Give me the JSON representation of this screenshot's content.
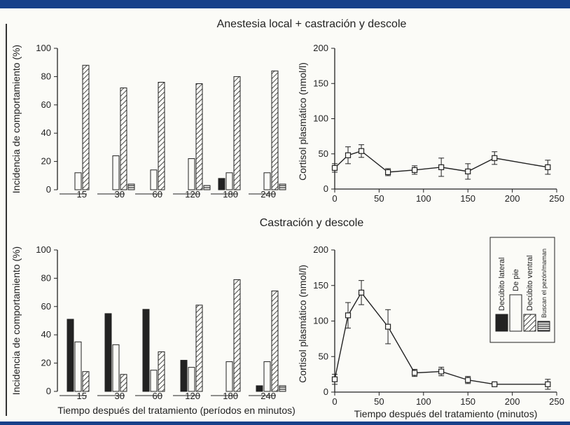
{
  "panel_titles": {
    "top": "Anestesia local + castración y descole",
    "bottom": "Castración y descole"
  },
  "legend": {
    "items": [
      {
        "label": "Decúbito lateral",
        "pattern": "solid"
      },
      {
        "label": "De pie",
        "pattern": "open"
      },
      {
        "label": "Decúbito ventral",
        "pattern": "diagonal"
      },
      {
        "label": "Buscan el pezón/maman",
        "pattern": "horizontal"
      }
    ]
  },
  "colors": {
    "ink": "#222222",
    "paper": "#fbfbf7",
    "border": "#17408a"
  },
  "chart_data": [
    {
      "id": "top-behavior",
      "type": "bar",
      "ylabel": "Incidencia de comportamiento (%)",
      "xlabel": "",
      "ylim": [
        0,
        100
      ],
      "yticks": [
        0,
        20,
        40,
        60,
        80,
        100
      ],
      "categories": [
        "15",
        "30",
        "60",
        "120",
        "180",
        "240"
      ],
      "series": [
        {
          "name": "Decúbito lateral",
          "pattern": "solid",
          "values": [
            0,
            0,
            0,
            0,
            8,
            0
          ]
        },
        {
          "name": "De pie",
          "pattern": "open",
          "values": [
            12,
            24,
            14,
            22,
            12,
            12
          ]
        },
        {
          "name": "Decúbito ventral",
          "pattern": "diagonal",
          "values": [
            88,
            72,
            76,
            75,
            80,
            84
          ]
        },
        {
          "name": "Buscan el pezón/maman",
          "pattern": "horizontal",
          "values": [
            0,
            4,
            0,
            3,
            0,
            4
          ]
        }
      ]
    },
    {
      "id": "top-cortisol",
      "type": "line",
      "ylabel": "Cortisol plasmático (nmol/l)",
      "xlabel": "",
      "xlim": [
        0,
        250
      ],
      "ylim": [
        0,
        200
      ],
      "xticks": [
        0,
        50,
        100,
        150,
        200,
        250
      ],
      "yticks": [
        0,
        50,
        100,
        150,
        200
      ],
      "xticklabels": [
        "0",
        "50",
        "100",
        "150",
        "200",
        "250"
      ],
      "yticklabels": [
        "0",
        "50",
        "100",
        "150",
        "200"
      ],
      "x": [
        0,
        15,
        30,
        60,
        90,
        120,
        150,
        180,
        240
      ],
      "y": [
        30,
        48,
        54,
        24,
        27,
        31,
        25,
        44,
        31
      ],
      "err": [
        6,
        12,
        9,
        5,
        6,
        13,
        11,
        9,
        10
      ]
    },
    {
      "id": "bottom-behavior",
      "type": "bar",
      "ylabel": "Incidencia de comportamiento (%)",
      "xlabel": "Tiempo después del tratamiento (períodos en minutos)",
      "ylim": [
        0,
        100
      ],
      "yticks": [
        0,
        20,
        40,
        60,
        80,
        100
      ],
      "categories": [
        "15",
        "30",
        "60",
        "120",
        "180",
        "240"
      ],
      "series": [
        {
          "name": "Decúbito lateral",
          "pattern": "solid",
          "values": [
            51,
            55,
            58,
            22,
            0,
            4
          ]
        },
        {
          "name": "De pie",
          "pattern": "open",
          "values": [
            35,
            33,
            15,
            17,
            21,
            21
          ]
        },
        {
          "name": "Decúbito ventral",
          "pattern": "diagonal",
          "values": [
            14,
            12,
            28,
            61,
            79,
            71
          ]
        },
        {
          "name": "Buscan el pezón/maman",
          "pattern": "horizontal",
          "values": [
            0,
            0,
            0,
            0,
            0,
            4
          ]
        }
      ]
    },
    {
      "id": "bottom-cortisol",
      "type": "line",
      "ylabel": "Cortisol plasmático (nmol/l)",
      "xlabel": "Tiempo después del tratamiento (minutos)",
      "xlim": [
        0,
        250
      ],
      "ylim": [
        0,
        200
      ],
      "xticks": [
        0,
        50,
        100,
        150,
        200,
        250
      ],
      "yticks": [
        0,
        50,
        100,
        150,
        200
      ],
      "xticklabels": [
        "0",
        "50",
        "100",
        "150",
        "200",
        "250"
      ],
      "yticklabels": [
        "0",
        "50",
        "100",
        "150",
        "200"
      ],
      "x": [
        0,
        15,
        30,
        60,
        90,
        120,
        150,
        180,
        240
      ],
      "y": [
        18,
        108,
        140,
        92,
        27,
        29,
        17,
        11,
        11
      ],
      "err": [
        7,
        18,
        17,
        24,
        5,
        6,
        5,
        2,
        7
      ]
    }
  ]
}
